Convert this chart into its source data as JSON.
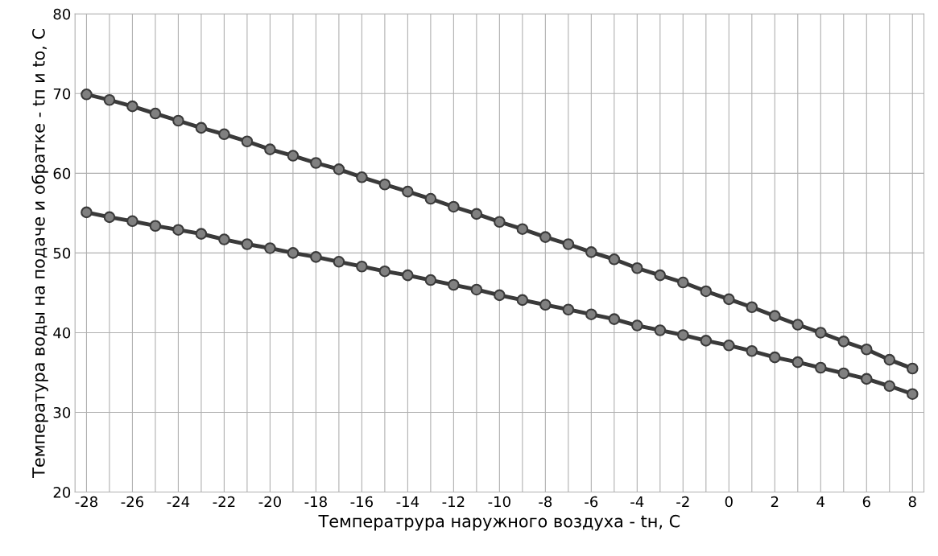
{
  "chart_data": {
    "type": "line",
    "xlabel": "Температрура наружного воздуха - tн, С",
    "ylabel": "Температура воды на подаче и обратке - tп и tо, С",
    "x": [
      -28,
      -27,
      -26,
      -25,
      -24,
      -23,
      -22,
      -21,
      -20,
      -19,
      -18,
      -17,
      -16,
      -15,
      -14,
      -13,
      -12,
      -11,
      -10,
      -9,
      -8,
      -7,
      -6,
      -5,
      -4,
      -3,
      -2,
      -1,
      0,
      1,
      2,
      3,
      4,
      5,
      6,
      7,
      8
    ],
    "series": [
      {
        "color": "#3a3a3a",
        "values": [
          69.9,
          69.2,
          68.4,
          67.5,
          66.6,
          65.7,
          64.9,
          64.0,
          63.0,
          62.2,
          61.3,
          60.5,
          59.5,
          58.6,
          57.7,
          56.8,
          55.8,
          54.9,
          53.9,
          53.0,
          52.0,
          51.1,
          50.1,
          49.2,
          48.1,
          47.2,
          46.3,
          45.2,
          44.2,
          43.2,
          42.1,
          41.0,
          40.0,
          38.9,
          37.9,
          36.6,
          35.5
        ]
      },
      {
        "color": "#3a3a3a",
        "values": [
          55.1,
          54.5,
          54.0,
          53.4,
          52.9,
          52.4,
          51.7,
          51.1,
          50.6,
          50.0,
          49.5,
          48.9,
          48.3,
          47.7,
          47.2,
          46.6,
          46.0,
          45.4,
          44.7,
          44.1,
          43.5,
          42.9,
          42.3,
          41.7,
          40.9,
          40.3,
          39.7,
          39.0,
          38.4,
          37.7,
          36.9,
          36.3,
          35.6,
          34.9,
          34.2,
          33.3,
          32.3
        ]
      }
    ],
    "xlim": [
      -28.5,
      8.5
    ],
    "xticks": [
      -28,
      {
        "value": -27,
        "label": null
      },
      -26,
      {
        "value": -25,
        "label": null
      },
      -24,
      {
        "value": -23,
        "label": null
      },
      -22,
      {
        "value": -21,
        "label": null
      },
      -20,
      {
        "value": -19,
        "label": null
      },
      -18,
      {
        "value": -17,
        "label": null
      },
      -16,
      {
        "value": -15,
        "label": null
      },
      -14,
      {
        "value": -13,
        "label": null
      },
      -12,
      {
        "value": -11,
        "label": null
      },
      -10,
      {
        "value": -9,
        "label": null
      },
      -8,
      {
        "value": -7,
        "label": null
      },
      -6,
      {
        "value": -5,
        "label": null
      },
      -4,
      {
        "value": -3,
        "label": null
      },
      -2,
      {
        "value": -1,
        "label": null
      },
      0,
      {
        "value": 1,
        "label": null
      },
      2,
      {
        "value": 3,
        "label": null
      },
      4,
      {
        "value": 5,
        "label": null
      },
      6,
      {
        "value": 7,
        "label": null
      },
      8
    ],
    "ylim": [
      20,
      80
    ],
    "yticks": [
      20,
      30,
      40,
      50,
      60,
      70,
      80
    ],
    "grid": true,
    "marker": "circle",
    "line_style": "solid"
  }
}
